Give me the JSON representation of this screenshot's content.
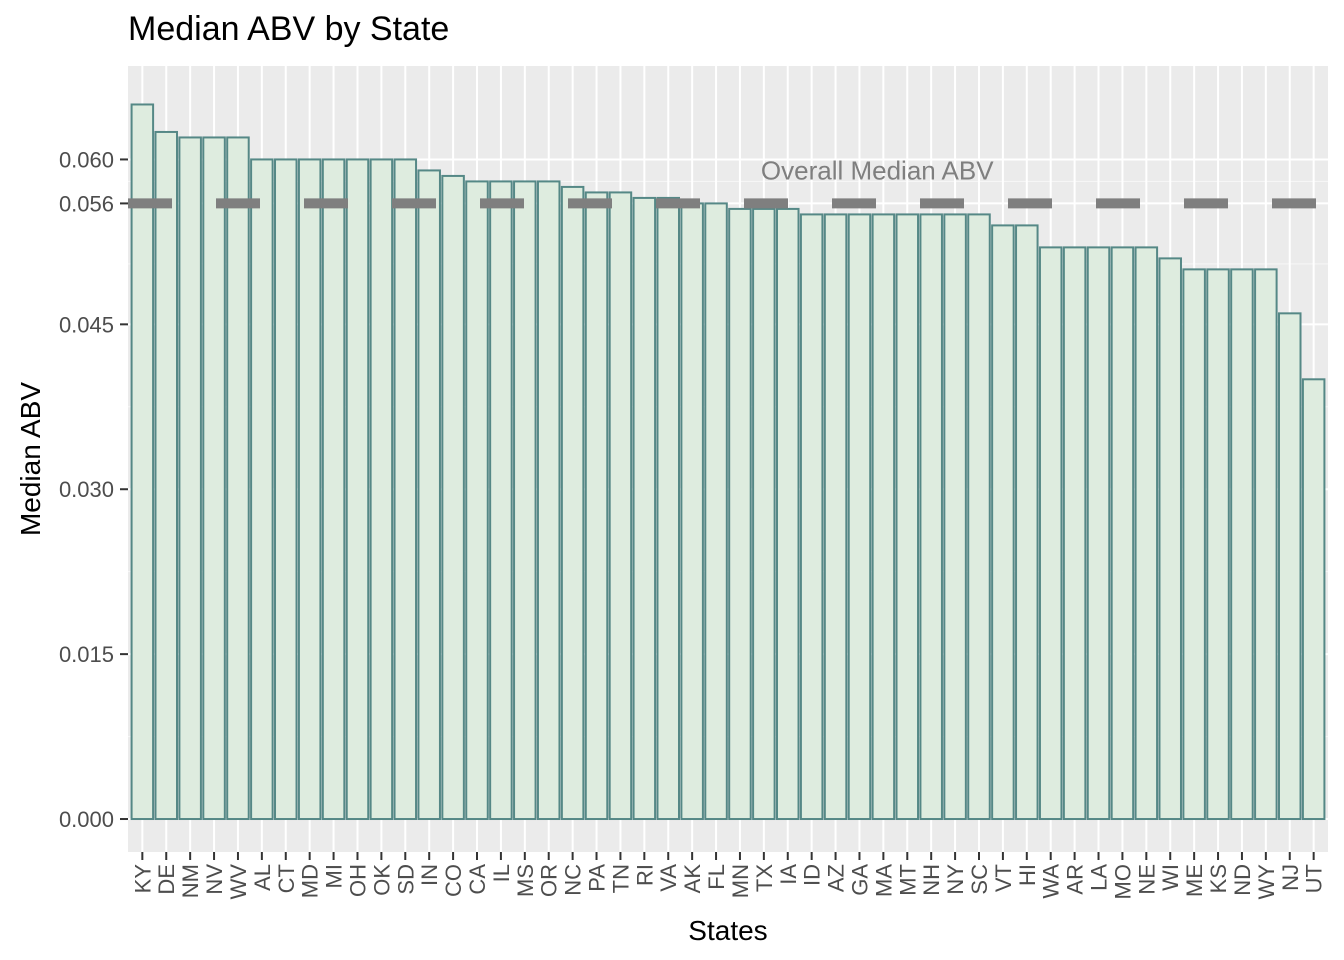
{
  "chart_data": {
    "type": "bar",
    "title": "Median ABV by State",
    "xlabel": "States",
    "ylabel": "Median ABV",
    "ylim": [
      -0.003,
      0.0685
    ],
    "yticks": [
      0.0,
      0.015,
      0.03,
      0.045,
      0.056,
      0.06
    ],
    "ytick_labels": [
      "0.000",
      "0.015",
      "0.030",
      "0.045",
      "0.056",
      "0.060"
    ],
    "grid": true,
    "categories": [
      "KY",
      "DE",
      "NM",
      "NV",
      "WV",
      "AL",
      "CT",
      "MD",
      "MI",
      "OH",
      "OK",
      "SD",
      "IN",
      "CO",
      "CA",
      "IL",
      "MS",
      "OR",
      "NC",
      "PA",
      "TN",
      "RI",
      "VA",
      "AK",
      "FL",
      "MN",
      "TX",
      "IA",
      "ID",
      "AZ",
      "GA",
      "MA",
      "MT",
      "NH",
      "NY",
      "SC",
      "VT",
      "HI",
      "WA",
      "AR",
      "LA",
      "MO",
      "NE",
      "WI",
      "ME",
      "KS",
      "ND",
      "WY",
      "NJ",
      "UT"
    ],
    "values": [
      0.065,
      0.0625,
      0.062,
      0.062,
      0.062,
      0.06,
      0.06,
      0.06,
      0.06,
      0.06,
      0.06,
      0.06,
      0.059,
      0.0585,
      0.058,
      0.058,
      0.058,
      0.058,
      0.0575,
      0.057,
      0.057,
      0.0565,
      0.0565,
      0.056,
      0.056,
      0.0555,
      0.0555,
      0.0555,
      0.055,
      0.055,
      0.055,
      0.055,
      0.055,
      0.055,
      0.055,
      0.055,
      0.054,
      0.054,
      0.052,
      0.052,
      0.052,
      0.052,
      0.052,
      0.051,
      0.05,
      0.05,
      0.05,
      0.05,
      0.046,
      0.04
    ],
    "reference_line": {
      "value": 0.056,
      "label": "Overall Median ABV",
      "style": "dashed"
    },
    "colors": {
      "bar_fill": "#deecdf",
      "bar_stroke": "#558886",
      "panel_bg": "#ebebeb",
      "grid_major": "#ffffff",
      "reference_line": "#7f7f7f",
      "annotation": "#7f7f7f"
    }
  }
}
